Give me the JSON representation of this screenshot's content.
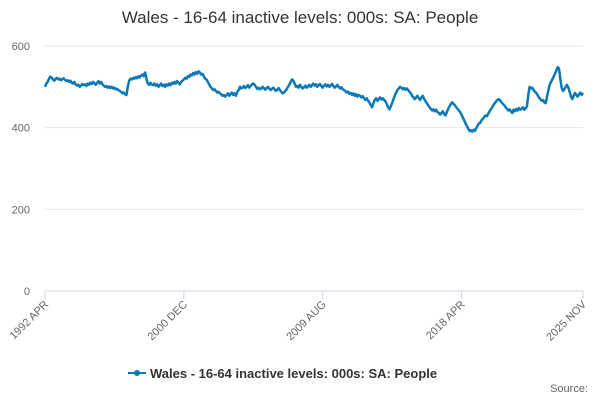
{
  "chart_data": {
    "type": "line",
    "title": "Wales - 16-64 inactive levels: 000s: SA: People",
    "source": "Source:",
    "categories": [
      "1992 APR",
      null,
      null,
      null,
      null,
      null,
      null,
      null,
      null,
      null,
      null,
      null,
      null,
      null,
      null,
      null,
      null,
      null,
      null,
      null,
      null,
      null,
      null,
      null,
      null,
      null,
      null,
      null,
      null,
      null,
      null,
      null,
      null,
      null,
      null,
      null,
      null,
      null,
      null,
      null,
      null,
      null,
      null,
      null,
      null,
      null,
      null,
      null,
      null,
      null,
      null,
      null,
      null,
      null,
      null,
      null,
      null,
      null,
      null,
      null,
      null,
      null,
      null,
      null,
      null,
      null,
      null,
      null,
      null,
      null,
      null,
      null,
      null,
      null,
      null,
      null,
      null,
      null,
      null,
      null,
      null,
      null,
      null,
      null,
      null,
      null,
      null,
      null,
      null,
      null,
      null,
      null,
      null,
      null,
      null,
      null,
      null,
      null,
      null,
      null,
      null,
      null,
      null,
      null,
      "2000 DEC",
      null,
      null,
      null,
      null,
      null,
      null,
      null,
      null,
      null,
      null,
      null,
      null,
      null,
      null,
      null,
      null,
      null,
      null,
      null,
      null,
      null,
      null,
      null,
      null,
      null,
      null,
      null,
      null,
      null,
      null,
      null,
      null,
      null,
      null,
      null,
      null,
      null,
      null,
      null,
      null,
      null,
      null,
      null,
      null,
      null,
      null,
      null,
      null,
      null,
      null,
      null,
      null,
      null,
      null,
      null,
      null,
      null,
      null,
      null,
      null,
      null,
      null,
      null,
      null,
      null,
      null,
      null,
      null,
      null,
      null,
      null,
      null,
      null,
      null,
      null,
      null,
      null,
      null,
      null,
      null,
      null,
      null,
      null,
      null,
      null,
      null,
      null,
      null,
      null,
      null,
      null,
      null,
      null,
      null,
      null,
      null,
      null,
      null,
      null,
      null,
      null,
      null,
      null,
      "2009 AUG",
      null,
      null,
      null,
      null,
      null,
      null,
      null,
      null,
      null,
      null,
      null,
      null,
      null,
      null,
      null,
      null,
      null,
      null,
      null,
      null,
      null,
      null,
      null,
      null,
      null,
      null,
      null,
      null,
      null,
      null,
      null,
      null,
      null,
      null,
      null,
      null,
      null,
      null,
      null,
      null,
      null,
      null,
      null,
      null,
      null,
      null,
      null,
      null,
      null,
      null,
      null,
      null,
      null,
      null,
      null,
      null,
      null,
      null,
      null,
      null,
      null,
      null,
      null,
      null,
      null,
      null,
      null,
      null,
      null,
      null,
      null,
      null,
      null,
      null,
      null,
      null,
      null,
      null,
      null,
      null,
      null,
      null,
      null,
      null,
      null,
      null,
      null,
      null,
      null,
      null,
      null,
      null,
      null,
      null,
      null,
      null,
      null,
      null,
      null,
      null,
      null,
      null,
      null,
      "2018 APR",
      null,
      null,
      null,
      null,
      null,
      null,
      null,
      null,
      null,
      null,
      null,
      null,
      null,
      null,
      null,
      null,
      null,
      null,
      null,
      null,
      null,
      null,
      null,
      null,
      null,
      null,
      null,
      null,
      null,
      null,
      null,
      null,
      null,
      null,
      null,
      null,
      null,
      null,
      null,
      null,
      null,
      null,
      null,
      null,
      null,
      null,
      null,
      null,
      null,
      null,
      null,
      null,
      null,
      null,
      null,
      null,
      null,
      null,
      null,
      null,
      null,
      null,
      null,
      null,
      null,
      null,
      null,
      null,
      null,
      null,
      null,
      null,
      null,
      null,
      null,
      null,
      null,
      null,
      null,
      null,
      null,
      null,
      null,
      null,
      null,
      null,
      null,
      null,
      null,
      null,
      "2025 NOV"
    ],
    "series": [
      {
        "name": "Wales - 16-64 inactive levels: 000s: SA: People",
        "color": "#0b79b6",
        "values": [
          500,
          508,
          512,
          520,
          525,
          522,
          518,
          515,
          520,
          522,
          518,
          520,
          516,
          519,
          521,
          517,
          514,
          516,
          512,
          515,
          510,
          508,
          512,
          506,
          503,
          505,
          500,
          503,
          507,
          504,
          506,
          502,
          508,
          505,
          510,
          507,
          512,
          509,
          505,
          510,
          514,
          508,
          512,
          506,
          503,
          500,
          502,
          498,
          501,
          497,
          500,
          496,
          498,
          494,
          495,
          492,
          490,
          488,
          484,
          486,
          482,
          480,
          500,
          515,
          520,
          518,
          522,
          520,
          524,
          521,
          526,
          523,
          528,
          530,
          526,
          535,
          520,
          508,
          505,
          510,
          506,
          504,
          508,
          503,
          506,
          500,
          504,
          508,
          502,
          505,
          500,
          506,
          503,
          508,
          504,
          510,
          507,
          512,
          508,
          514,
          510,
          506,
          512,
          515,
          518,
          522,
          520,
          526,
          524,
          530,
          528,
          534,
          530,
          536,
          532,
          538,
          535,
          530,
          532,
          526,
          520,
          518,
          512,
          506,
          500,
          496,
          492,
          494,
          490,
          486,
          488,
          484,
          482,
          478,
          480,
          476,
          480,
          484,
          478,
          482,
          486,
          480,
          484,
          478,
          488,
          492,
          500,
          496,
          498,
          502,
          497,
          500,
          504,
          498,
          502,
          506,
          508,
          505,
          500,
          495,
          498,
          494,
          496,
          500,
          497,
          493,
          497,
          500,
          496,
          492,
          495,
          498,
          494,
          490,
          493,
          497,
          492,
          488,
          484,
          486,
          490,
          494,
          500,
          505,
          512,
          518,
          515,
          508,
          500,
          502,
          498,
          505,
          500,
          496,
          499,
          503,
          498,
          501,
          505,
          500,
          504,
          508,
          503,
          506,
          500,
          504,
          507,
          502,
          498,
          503,
          506,
          501,
          505,
          500,
          503,
          507,
          502,
          498,
          501,
          505,
          500,
          496,
          499,
          494,
          492,
          490,
          486,
          488,
          483,
          485,
          480,
          484,
          478,
          482,
          476,
          480,
          478,
          474,
          477,
          472,
          468,
          472,
          466,
          462,
          455,
          450,
          460,
          468,
          472,
          466,
          470,
          474,
          469,
          472,
          468,
          465,
          458,
          450,
          445,
          452,
          460,
          470,
          478,
          486,
          492,
          496,
          500,
          498,
          494,
          497,
          493,
          496,
          492,
          488,
          484,
          478,
          474,
          470,
          474,
          478,
          472,
          468,
          474,
          478,
          470,
          465,
          460,
          455,
          450,
          446,
          442,
          445,
          440,
          444,
          438,
          436,
          432,
          436,
          440,
          434,
          430,
          438,
          446,
          452,
          458,
          462,
          458,
          455,
          450,
          446,
          442,
          438,
          432,
          425,
          418,
          410,
          404,
          398,
          392,
          394,
          390,
          395,
          392,
          398,
          405,
          410,
          412,
          418,
          422,
          426,
          430,
          428,
          434,
          440,
          445,
          450,
          456,
          460,
          465,
          468,
          470,
          466,
          462,
          458,
          455,
          450,
          446,
          442,
          445,
          440,
          436,
          444,
          440,
          446,
          442,
          448,
          444,
          446,
          450,
          444,
          447,
          452,
          480,
          500,
          496,
          498,
          492,
          488,
          485,
          480,
          474,
          470,
          466,
          468,
          462,
          460,
          475,
          490,
          505,
          512,
          518,
          525,
          532,
          540,
          548,
          545,
          520,
          498,
          490,
          494,
          500,
          505,
          498,
          488,
          476,
          470,
          478,
          485,
          480,
          476,
          482,
          486,
          480,
          485
        ]
      }
    ],
    "ylim": [
      0,
      600
    ],
    "yticks": [
      0,
      200,
      400,
      600
    ],
    "grid": true
  }
}
